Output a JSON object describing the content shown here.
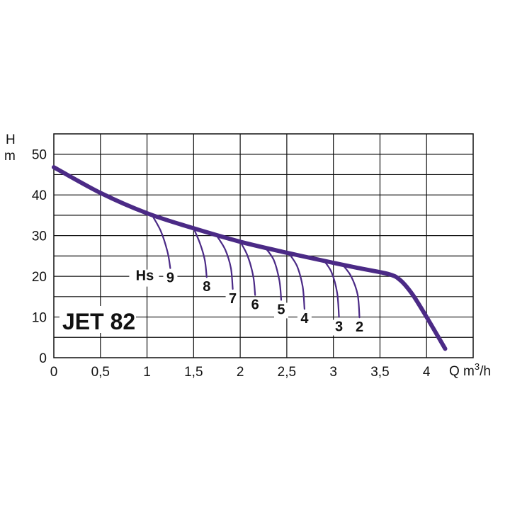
{
  "chart_data": {
    "type": "line",
    "title": "JET 82",
    "xlabel": "Q m³/h",
    "ylabel_top": "H",
    "ylabel_bottom": "m",
    "xlim": [
      0,
      4.5
    ],
    "ylim": [
      0,
      55
    ],
    "grid": true,
    "xticks": [
      {
        "v": 0,
        "label": "0"
      },
      {
        "v": 0.5,
        "label": "0,5"
      },
      {
        "v": 1,
        "label": "1"
      },
      {
        "v": 1.5,
        "label": "1,5"
      },
      {
        "v": 2,
        "label": "2"
      },
      {
        "v": 2.5,
        "label": "2,5"
      },
      {
        "v": 3,
        "label": "3"
      },
      {
        "v": 3.5,
        "label": "3,5"
      },
      {
        "v": 4,
        "label": "4"
      }
    ],
    "yticks": [
      {
        "v": 0,
        "label": "0"
      },
      {
        "v": 10,
        "label": "10"
      },
      {
        "v": 20,
        "label": "20"
      },
      {
        "v": 30,
        "label": "30"
      },
      {
        "v": 40,
        "label": "40"
      },
      {
        "v": 50,
        "label": "50"
      }
    ],
    "main_curve": {
      "color": "#4b2a86",
      "points": [
        [
          0,
          46.8
        ],
        [
          0.5,
          40.5
        ],
        [
          1.0,
          35.5
        ],
        [
          1.5,
          31.8
        ],
        [
          2.0,
          28.5
        ],
        [
          2.5,
          25.8
        ],
        [
          3.0,
          23.3
        ],
        [
          3.3,
          21.9
        ],
        [
          3.6,
          20.5
        ],
        [
          3.72,
          19.0
        ],
        [
          3.85,
          15.5
        ],
        [
          4.0,
          10.0
        ],
        [
          4.2,
          2.2
        ]
      ]
    },
    "suction_label": "Hs",
    "suction_curves": [
      {
        "label": "9",
        "points": [
          [
            1.05,
            35.2
          ],
          [
            1.15,
            31.0
          ],
          [
            1.22,
            26.0
          ],
          [
            1.25,
            22.0
          ]
        ]
      },
      {
        "label": "8",
        "points": [
          [
            1.5,
            31.8
          ],
          [
            1.57,
            28.0
          ],
          [
            1.62,
            24.0
          ],
          [
            1.64,
            19.8
          ]
        ]
      },
      {
        "label": "7",
        "points": [
          [
            1.75,
            29.9
          ],
          [
            1.84,
            26.5
          ],
          [
            1.9,
            22.0
          ],
          [
            1.92,
            16.9
          ]
        ]
      },
      {
        "label": "6",
        "points": [
          [
            2.0,
            28.5
          ],
          [
            2.08,
            25.0
          ],
          [
            2.14,
            20.0
          ],
          [
            2.16,
            15.4
          ]
        ]
      },
      {
        "label": "5",
        "points": [
          [
            2.27,
            27.0
          ],
          [
            2.36,
            24.0
          ],
          [
            2.42,
            19.0
          ],
          [
            2.44,
            14.2
          ]
        ]
      },
      {
        "label": "4",
        "points": [
          [
            2.52,
            25.7
          ],
          [
            2.61,
            22.5
          ],
          [
            2.67,
            17.5
          ],
          [
            2.69,
            12.0
          ]
        ]
      },
      {
        "label": "3",
        "points": [
          [
            2.9,
            23.8
          ],
          [
            2.98,
            21.0
          ],
          [
            3.04,
            16.0
          ],
          [
            3.06,
            10.0
          ]
        ]
      },
      {
        "label": "2",
        "points": [
          [
            3.1,
            22.8
          ],
          [
            3.19,
            20.0
          ],
          [
            3.26,
            15.5
          ],
          [
            3.28,
            9.9
          ]
        ]
      }
    ]
  }
}
